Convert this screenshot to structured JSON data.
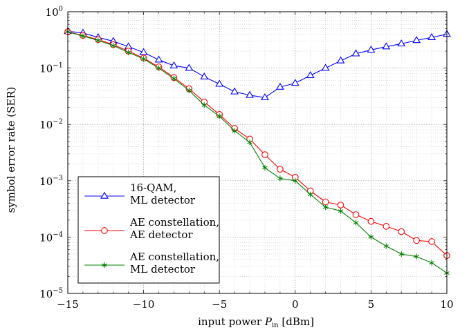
{
  "chart_data": {
    "type": "line",
    "title": "",
    "xlabel_prefix": "input power ",
    "xlabel_var": "P",
    "xlabel_sub": "in",
    "xlabel_suffix": " [dBm]",
    "ylabel": "symbol error rate (SER)",
    "xlim": [
      -15,
      10
    ],
    "ylim": [
      1e-05,
      1
    ],
    "yscale": "log",
    "grid": true,
    "legend_position": "bottom-left",
    "xticks": [
      -15,
      -10,
      -5,
      0,
      5,
      10
    ],
    "xtick_labels": [
      "−15",
      "−10",
      "−5",
      "0",
      "5",
      "10"
    ],
    "yticks": [
      {
        "base": "10",
        "exp": "−5",
        "value": 1e-05
      },
      {
        "base": "10",
        "exp": "−4",
        "value": 0.0001
      },
      {
        "base": "10",
        "exp": "−3",
        "value": 0.001
      },
      {
        "base": "10",
        "exp": "−2",
        "value": 0.01
      },
      {
        "base": "10",
        "exp": "−1",
        "value": 0.1
      },
      {
        "base": "10",
        "exp": "0",
        "value": 1
      }
    ],
    "x": [
      -15,
      -14,
      -13,
      -12,
      -11,
      -10,
      -9,
      -8,
      -7,
      -6,
      -5,
      -4,
      -3,
      -2,
      -1,
      0,
      1,
      2,
      3,
      4,
      5,
      6,
      7,
      8,
      9,
      10
    ],
    "series": [
      {
        "name_lines": [
          "16-QAM,",
          "ML detector"
        ],
        "color": "#0000ff",
        "marker": "triangle",
        "values": [
          0.45,
          0.42,
          0.35,
          0.3,
          0.24,
          0.19,
          0.14,
          0.11,
          0.1,
          0.07,
          0.052,
          0.038,
          0.033,
          0.03,
          0.046,
          0.054,
          0.074,
          0.1,
          0.135,
          0.18,
          0.21,
          0.24,
          0.27,
          0.31,
          0.35,
          0.4
        ]
      },
      {
        "name_lines": [
          "AE constellation,",
          "AE detector"
        ],
        "color": "#ff0000",
        "marker": "circle",
        "values": [
          0.44,
          0.38,
          0.32,
          0.26,
          0.2,
          0.15,
          0.105,
          0.068,
          0.043,
          0.025,
          0.015,
          0.0085,
          0.0055,
          0.0029,
          0.0016,
          0.00115,
          0.00066,
          0.00042,
          0.00037,
          0.00025,
          0.00019,
          0.000155,
          0.000125,
          8.7e-05,
          8.3e-05,
          4.7e-05
        ]
      },
      {
        "name_lines": [
          "AE constellation,",
          "ML detector"
        ],
        "color": "#008000",
        "marker": "star",
        "values": [
          0.44,
          0.37,
          0.31,
          0.25,
          0.19,
          0.145,
          0.1,
          0.065,
          0.04,
          0.022,
          0.014,
          0.0077,
          0.0048,
          0.0017,
          0.0011,
          0.001,
          0.00057,
          0.00034,
          0.00029,
          0.00018,
          0.0001,
          6.9e-05,
          5e-05,
          4.5e-05,
          3.5e-05,
          2.3e-05
        ]
      }
    ]
  }
}
